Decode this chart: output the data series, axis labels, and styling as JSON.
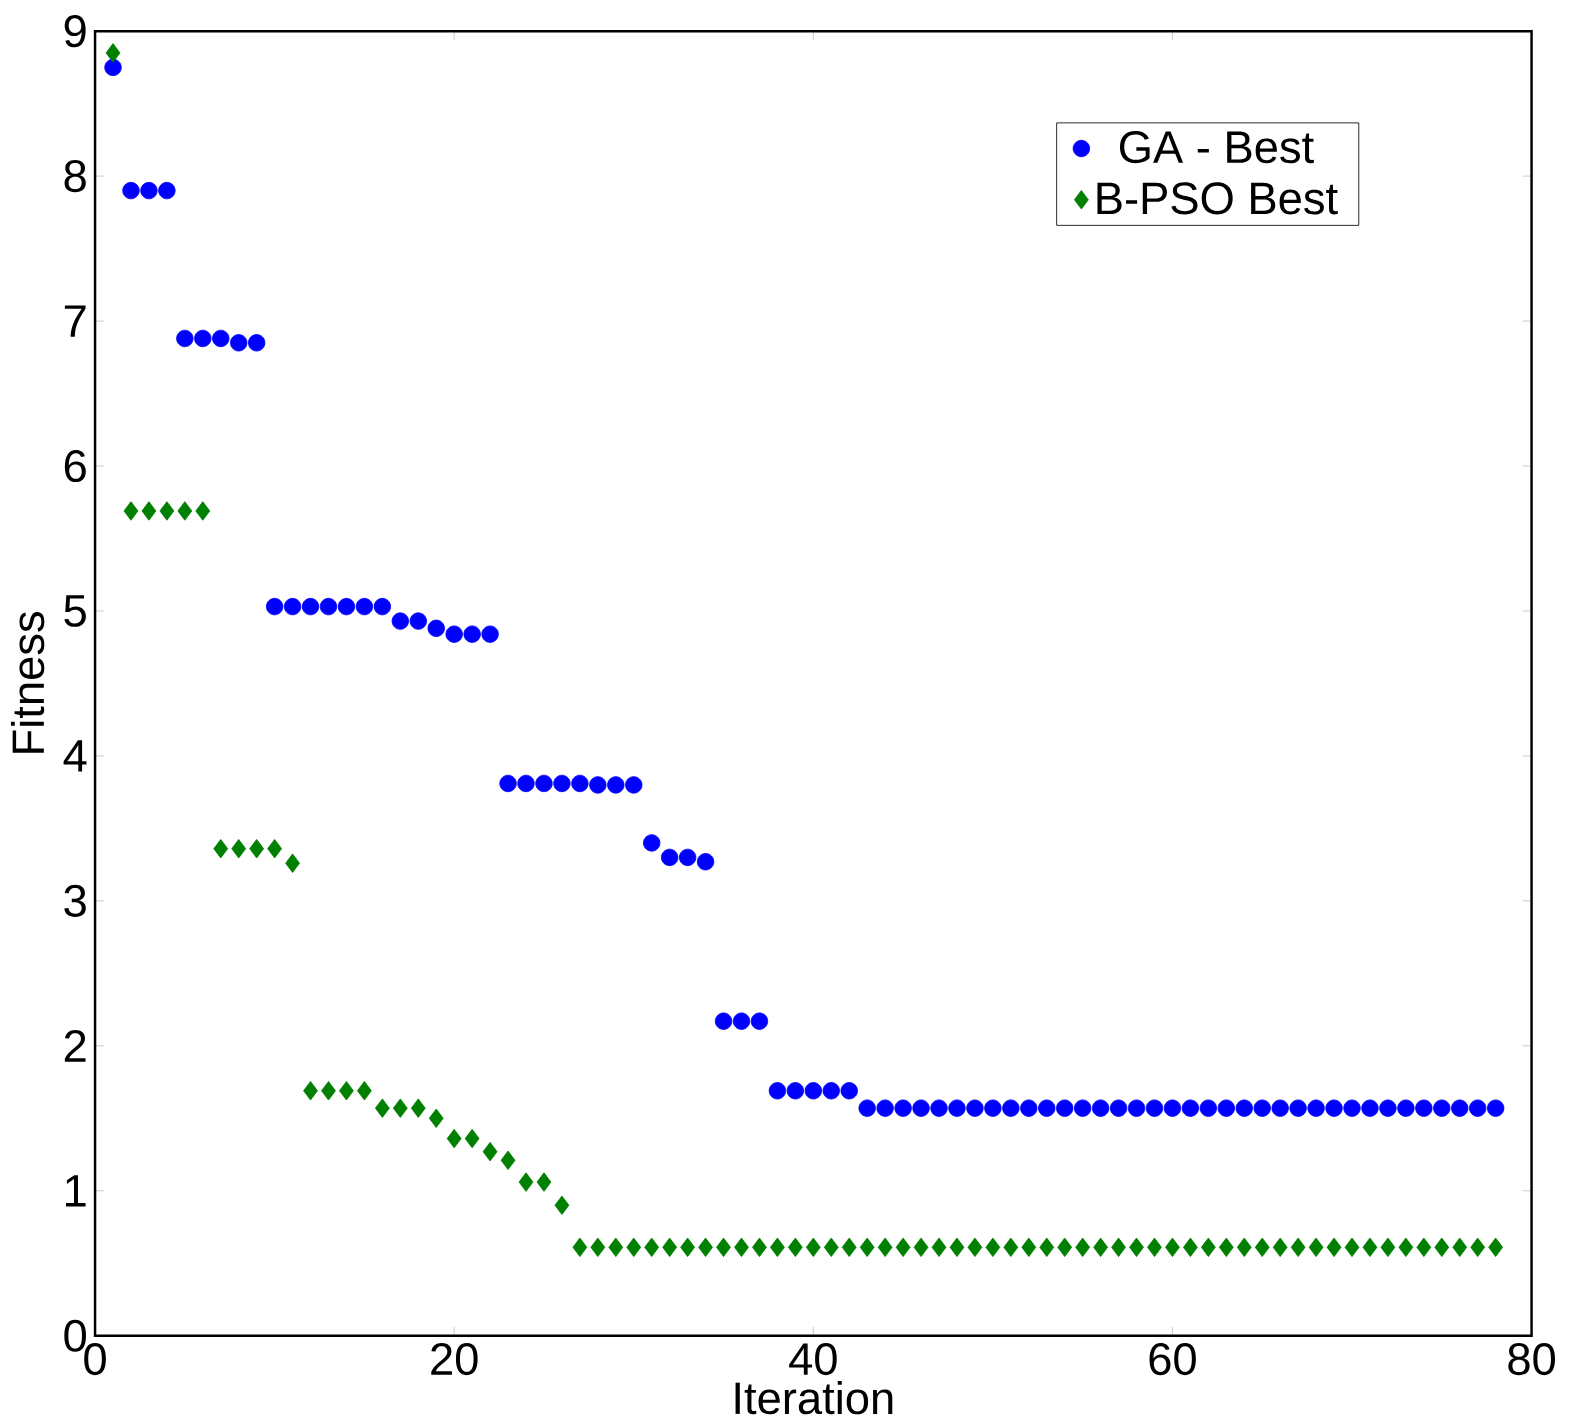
{
  "chart_data": {
    "type": "scatter",
    "xlabel": "Iteration",
    "ylabel": "Fitness",
    "xlim": [
      0,
      80
    ],
    "ylim": [
      0,
      9
    ],
    "xticks": [
      0,
      20,
      40,
      60,
      80
    ],
    "yticks": [
      0,
      1,
      2,
      3,
      4,
      5,
      6,
      7,
      8,
      9
    ],
    "legend": "top right",
    "grid": false,
    "x": [
      1,
      2,
      3,
      4,
      5,
      6,
      7,
      8,
      9,
      10,
      11,
      12,
      13,
      14,
      15,
      16,
      17,
      18,
      19,
      20,
      21,
      22,
      23,
      24,
      25,
      26,
      27,
      28,
      29,
      30,
      31,
      32,
      33,
      34,
      35,
      36,
      37,
      38,
      39,
      40,
      41,
      42,
      43,
      44,
      45,
      46,
      47,
      48,
      49,
      50,
      51,
      52,
      53,
      54,
      55,
      56,
      57,
      58,
      59,
      60,
      61,
      62,
      63,
      64,
      65,
      66,
      67,
      68,
      69,
      70,
      71,
      72,
      73,
      74,
      75,
      76,
      77,
      78
    ],
    "series": [
      {
        "name": "GA - Best",
        "color": "#0000ff",
        "marker": "circle",
        "values": [
          8.75,
          7.9,
          7.9,
          7.9,
          6.88,
          6.88,
          6.88,
          6.85,
          6.85,
          5.03,
          5.03,
          5.03,
          5.03,
          5.03,
          5.03,
          5.03,
          4.93,
          4.93,
          4.88,
          4.84,
          4.84,
          4.84,
          3.81,
          3.81,
          3.81,
          3.81,
          3.81,
          3.8,
          3.8,
          3.8,
          3.4,
          3.3,
          3.3,
          3.27,
          2.17,
          2.17,
          2.17,
          1.69,
          1.69,
          1.69,
          1.69,
          1.69,
          1.57,
          1.57,
          1.57,
          1.57,
          1.57,
          1.57,
          1.57,
          1.57,
          1.57,
          1.57,
          1.57,
          1.57,
          1.57,
          1.57,
          1.57,
          1.57,
          1.57,
          1.57,
          1.57,
          1.57,
          1.57,
          1.57,
          1.57,
          1.57,
          1.57,
          1.57,
          1.57,
          1.57,
          1.57,
          1.57,
          1.57,
          1.57,
          1.57,
          1.57,
          1.57,
          1.57
        ]
      },
      {
        "name": "B-PSO Best",
        "color": "#008000",
        "marker": "diamond",
        "values": [
          8.85,
          5.69,
          5.69,
          5.69,
          5.69,
          5.69,
          3.36,
          3.36,
          3.36,
          3.36,
          3.26,
          1.69,
          1.69,
          1.69,
          1.69,
          1.57,
          1.57,
          1.57,
          1.5,
          1.36,
          1.36,
          1.27,
          1.21,
          1.06,
          1.06,
          0.9,
          0.61,
          0.61,
          0.61,
          0.61,
          0.61,
          0.61,
          0.61,
          0.61,
          0.61,
          0.61,
          0.61,
          0.61,
          0.61,
          0.61,
          0.61,
          0.61,
          0.61,
          0.61,
          0.61,
          0.61,
          0.61,
          0.61,
          0.61,
          0.61,
          0.61,
          0.61,
          0.61,
          0.61,
          0.61,
          0.61,
          0.61,
          0.61,
          0.61,
          0.61,
          0.61,
          0.61,
          0.61,
          0.61,
          0.61,
          0.61,
          0.61,
          0.61,
          0.61,
          0.61,
          0.61,
          0.61,
          0.61,
          0.61,
          0.61,
          0.61,
          0.61,
          0.61
        ]
      }
    ]
  }
}
